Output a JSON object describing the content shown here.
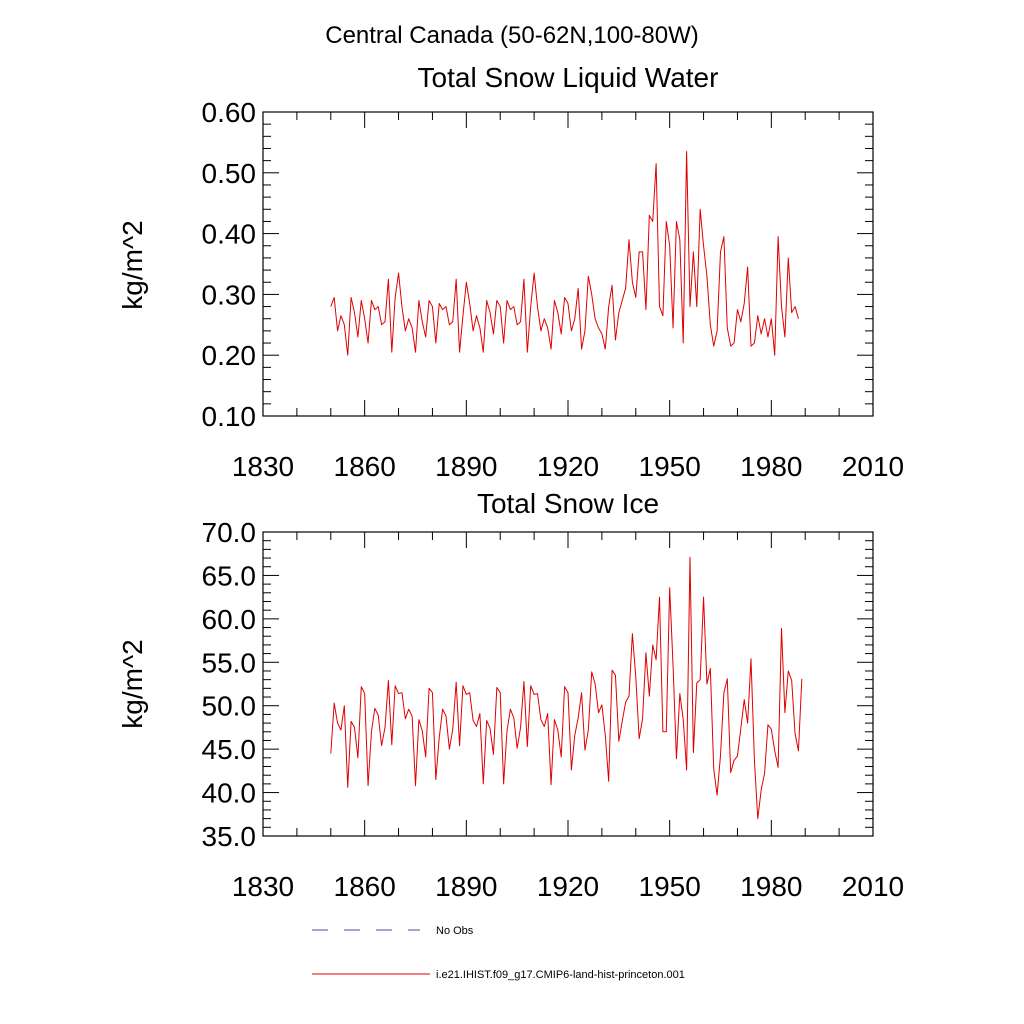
{
  "figure": {
    "suptitle": "Central Canada (50-62N,100-80W)"
  },
  "legend": {
    "items": [
      {
        "label": "No Obs",
        "color": "#4d4d9a",
        "style": "dashed"
      },
      {
        "label": "i.e21.IHIST.f09_g17.CMIP6-land-hist-princeton.001",
        "color": "#e00000",
        "style": "solid"
      }
    ]
  },
  "chart_data": [
    {
      "type": "line",
      "title": "Total Snow Liquid Water",
      "xlabel": "",
      "ylabel": "kg/m^2",
      "xlim": [
        1830,
        2010
      ],
      "ylim": [
        0.1,
        0.6
      ],
      "xticks": [
        1830,
        1860,
        1890,
        1920,
        1950,
        1980,
        2010
      ],
      "yticks": [
        0.1,
        0.2,
        0.3,
        0.4,
        0.5,
        0.6
      ],
      "ytick_labels": [
        "0.10",
        "0.20",
        "0.30",
        "0.40",
        "0.50",
        "0.60"
      ],
      "x_start": 1850,
      "x_step": 1,
      "series": [
        {
          "name": "i.e21.IHIST.f09_g17.CMIP6-land-hist-princeton.001",
          "color": "#e00000",
          "values": [
            0.28,
            0.295,
            0.24,
            0.265,
            0.25,
            0.2,
            0.295,
            0.27,
            0.23,
            0.29,
            0.26,
            0.22,
            0.29,
            0.275,
            0.28,
            0.25,
            0.255,
            0.325,
            0.205,
            0.295,
            0.335,
            0.28,
            0.24,
            0.26,
            0.245,
            0.205,
            0.29,
            0.255,
            0.23,
            0.29,
            0.28,
            0.22,
            0.285,
            0.275,
            0.28,
            0.25,
            0.255,
            0.325,
            0.205,
            0.265,
            0.32,
            0.285,
            0.24,
            0.265,
            0.245,
            0.205,
            0.29,
            0.27,
            0.235,
            0.29,
            0.28,
            0.22,
            0.29,
            0.275,
            0.28,
            0.25,
            0.255,
            0.325,
            0.205,
            0.28,
            0.335,
            0.28,
            0.24,
            0.26,
            0.245,
            0.21,
            0.29,
            0.27,
            0.235,
            0.295,
            0.285,
            0.24,
            0.26,
            0.31,
            0.21,
            0.24,
            0.33,
            0.3,
            0.26,
            0.245,
            0.235,
            0.21,
            0.28,
            0.315,
            0.225,
            0.27,
            0.29,
            0.31,
            0.39,
            0.32,
            0.295,
            0.37,
            0.37,
            0.275,
            0.43,
            0.42,
            0.515,
            0.28,
            0.265,
            0.42,
            0.38,
            0.245,
            0.42,
            0.39,
            0.22,
            0.535,
            0.28,
            0.37,
            0.28,
            0.44,
            0.38,
            0.33,
            0.25,
            0.215,
            0.24,
            0.37,
            0.395,
            0.245,
            0.215,
            0.22,
            0.275,
            0.255,
            0.285,
            0.345,
            0.215,
            0.22,
            0.265,
            0.235,
            0.26,
            0.23,
            0.26,
            0.2,
            0.395,
            0.28,
            0.23,
            0.36,
            0.27,
            0.28,
            0.26
          ]
        }
      ]
    },
    {
      "type": "line",
      "title": "Total Snow Ice",
      "xlabel": "",
      "ylabel": "kg/m^2",
      "xlim": [
        1830,
        2010
      ],
      "ylim": [
        35.0,
        70.0
      ],
      "xticks": [
        1830,
        1860,
        1890,
        1920,
        1950,
        1980,
        2010
      ],
      "yticks": [
        35.0,
        40.0,
        45.0,
        50.0,
        55.0,
        60.0,
        65.0,
        70.0
      ],
      "ytick_labels": [
        "35.0",
        "40.0",
        "45.0",
        "50.0",
        "55.0",
        "60.0",
        "65.0",
        "70.0"
      ],
      "x_start": 1850,
      "x_step": 1,
      "series": [
        {
          "name": "i.e21.IHIST.f09_g17.CMIP6-land-hist-princeton.001",
          "color": "#e00000",
          "values": [
            44.5,
            50.3,
            48.0,
            47.2,
            50.0,
            40.6,
            48.2,
            47.5,
            44.0,
            52.2,
            51.4,
            40.8,
            47.0,
            49.7,
            48.9,
            45.4,
            47.5,
            52.9,
            45.5,
            52.3,
            51.4,
            51.5,
            48.5,
            49.6,
            48.8,
            40.8,
            48.4,
            47.1,
            44.1,
            52.0,
            51.5,
            41.5,
            46.3,
            49.6,
            48.8,
            45.0,
            47.3,
            52.7,
            45.4,
            52.3,
            51.3,
            51.5,
            48.3,
            47.6,
            49.1,
            41.0,
            48.3,
            47.4,
            44.4,
            52.1,
            51.5,
            41.0,
            47.1,
            49.6,
            48.6,
            45.1,
            47.5,
            52.8,
            45.3,
            52.3,
            51.3,
            51.4,
            48.4,
            47.6,
            49.1,
            40.9,
            48.4,
            47.2,
            44.1,
            52.2,
            51.5,
            42.6,
            46.6,
            48.6,
            51.5,
            44.9,
            47.2,
            53.9,
            52.5,
            49.2,
            50.1,
            46.6,
            41.3,
            54.1,
            53.5,
            45.9,
            48.2,
            50.4,
            51.1,
            58.3,
            53.3,
            46.2,
            48.5,
            56.1,
            51.1,
            57.0,
            55.3,
            62.5,
            47.0,
            47.0,
            63.6,
            54.6,
            43.9,
            51.4,
            48.4,
            42.6,
            67.1,
            44.6,
            52.6,
            53.0,
            62.5,
            52.5,
            54.3,
            42.7,
            39.7,
            44.3,
            51.5,
            53.1,
            42.3,
            43.7,
            44.2,
            47.4,
            50.7,
            48.0,
            55.4,
            43.8,
            37.0,
            40.3,
            42.2,
            47.8,
            47.3,
            44.8,
            42.9,
            58.9,
            49.2,
            54.0,
            52.9,
            46.8,
            44.8,
            53.1
          ]
        }
      ]
    }
  ]
}
